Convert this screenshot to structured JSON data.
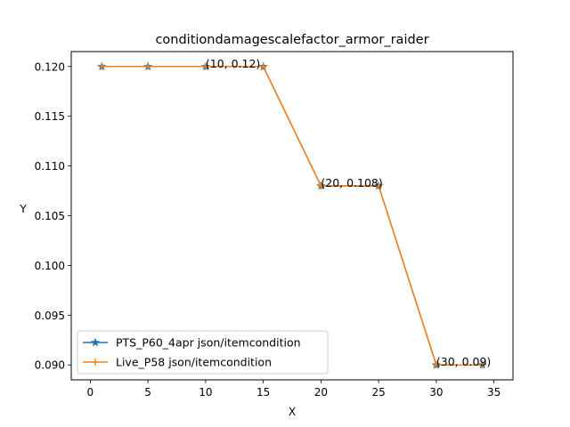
{
  "chart_data": {
    "type": "line",
    "title": "conditiondamagescalefactor_armor_raider",
    "xlabel": "X",
    "ylabel": "Y",
    "xlim": [
      -1.65,
      36.65
    ],
    "ylim": [
      0.0885,
      0.1215
    ],
    "xticks": [
      0,
      5,
      10,
      15,
      20,
      25,
      30,
      35
    ],
    "xtick_labels": [
      "0",
      "5",
      "10",
      "15",
      "20",
      "25",
      "30",
      "35"
    ],
    "yticks": [
      0.09,
      0.095,
      0.1,
      0.105,
      0.11,
      0.115,
      0.12
    ],
    "ytick_labels": [
      "0.090",
      "0.095",
      "0.100",
      "0.105",
      "0.110",
      "0.115",
      "0.120"
    ],
    "grid": false,
    "legend_position": "lower left",
    "series": [
      {
        "name": "PTS_P60_4apr json/itemcondition",
        "color": "#1f77b4",
        "marker": "star",
        "x": [
          1,
          5,
          10,
          15,
          20,
          25,
          30,
          34
        ],
        "y": [
          0.12,
          0.12,
          0.12,
          0.12,
          0.108,
          0.108,
          0.09,
          0.09
        ]
      },
      {
        "name": "Live_P58 json/itemcondition",
        "color": "#ff7f0e",
        "marker": "plus",
        "x": [
          1,
          5,
          10,
          15,
          20,
          25,
          30,
          34
        ],
        "y": [
          0.12,
          0.12,
          0.12,
          0.12,
          0.108,
          0.108,
          0.09,
          0.09
        ]
      }
    ],
    "annotations": [
      {
        "text": "(10, 0.12)",
        "x": 10,
        "y": 0.12
      },
      {
        "text": "(20, 0.108)",
        "x": 20,
        "y": 0.108
      },
      {
        "text": "(30, 0.09)",
        "x": 30,
        "y": 0.09
      }
    ]
  }
}
